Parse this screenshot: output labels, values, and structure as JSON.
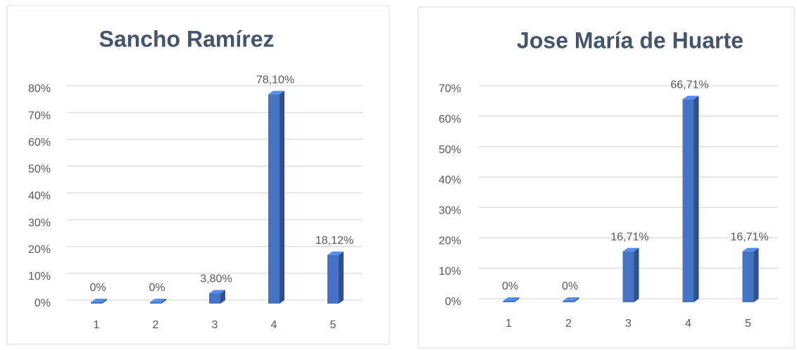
{
  "chart_data": [
    {
      "type": "bar",
      "title": "Sancho Ramírez",
      "categories": [
        "1",
        "2",
        "3",
        "4",
        "5"
      ],
      "values": [
        0,
        0,
        3.8,
        78.1,
        18.12
      ],
      "value_labels": [
        "0%",
        "0%",
        "3,80%",
        "78,10%",
        "18,12%"
      ],
      "color": "#4472c4",
      "ylim": [
        0,
        80
      ],
      "yticks": [
        {
          "value": 0,
          "label": "0%"
        },
        {
          "value": 10,
          "label": "10%"
        },
        {
          "value": 20,
          "label": "20%"
        },
        {
          "value": 30,
          "label": "30%"
        },
        {
          "value": 40,
          "label": "40%"
        },
        {
          "value": 50,
          "label": "50%"
        },
        {
          "value": 60,
          "label": "60%"
        },
        {
          "value": 70,
          "label": "70%"
        },
        {
          "value": 80,
          "label": "80%"
        }
      ],
      "grid": true
    },
    {
      "type": "bar",
      "title": "Jose María de Huarte",
      "categories": [
        "1",
        "2",
        "3",
        "4",
        "5"
      ],
      "values": [
        0,
        0,
        16.71,
        66.71,
        16.71
      ],
      "value_labels": [
        "0%",
        "0%",
        "16,71%",
        "66,71%",
        "16,71%"
      ],
      "color": "#4472c4",
      "ylim": [
        0,
        70
      ],
      "yticks": [
        {
          "value": 0,
          "label": "0%"
        },
        {
          "value": 10,
          "label": "10%"
        },
        {
          "value": 20,
          "label": "20%"
        },
        {
          "value": 30,
          "label": "30%"
        },
        {
          "value": 40,
          "label": "40%"
        },
        {
          "value": 50,
          "label": "50%"
        },
        {
          "value": 60,
          "label": "60%"
        },
        {
          "value": 70,
          "label": "70%"
        }
      ],
      "grid": true
    }
  ]
}
